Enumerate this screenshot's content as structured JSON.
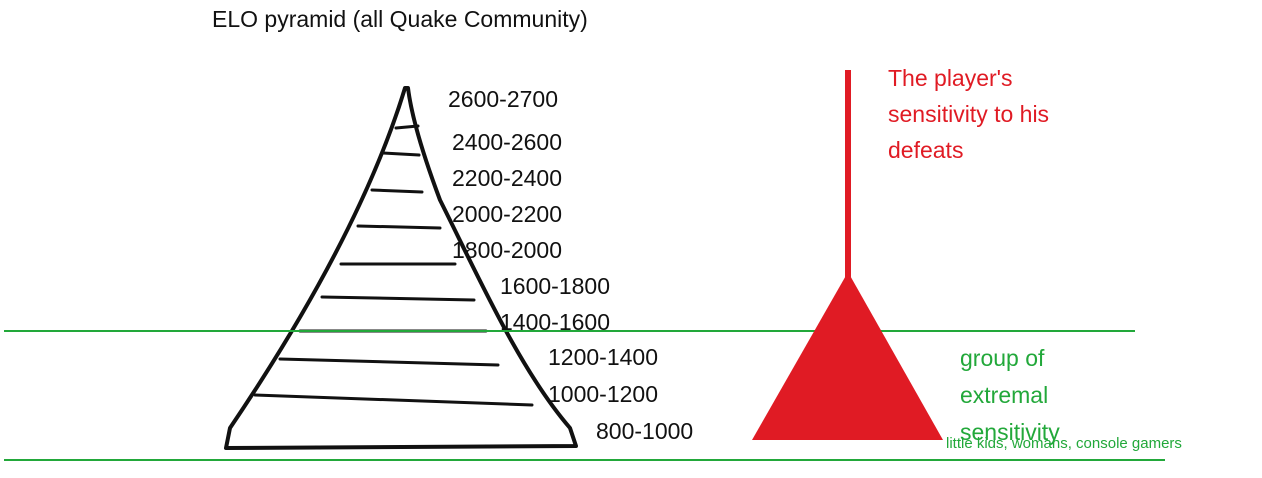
{
  "title": "ELO pyramid (all Quake Community)",
  "levels": [
    "2600-2700",
    "2400-2600",
    "2200-2400",
    "2000-2200",
    "1800-2000",
    "1600-1800",
    "1400-1600",
    "1200-1400",
    "1000-1200",
    "800-1000"
  ],
  "sensitivity_label": "The player's sensitivity to his defeats",
  "group_label": "group of extremal sensitivity",
  "group_note": "little kids, womans, console gamers",
  "colors": {
    "ink": "#111111",
    "red": "#e01b24",
    "green": "#22a83a"
  }
}
